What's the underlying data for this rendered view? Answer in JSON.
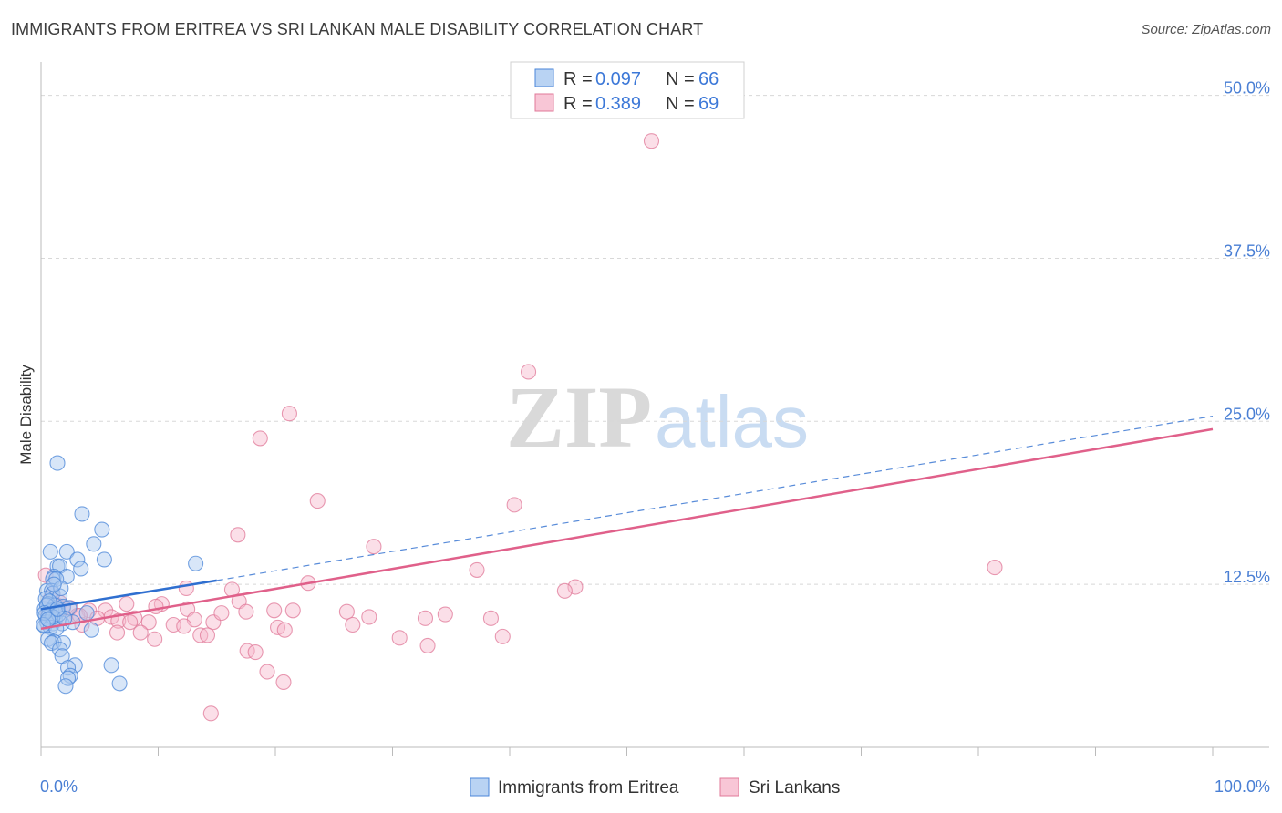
{
  "title": "IMMIGRANTS FROM ERITREA VS SRI LANKAN MALE DISABILITY CORRELATION CHART",
  "source": "Source: ZipAtlas.com",
  "watermark": {
    "zip": "ZIP",
    "atlas": "atlas"
  },
  "legend": {
    "rows": [
      {
        "r_label": "R =",
        "r_value": "0.097",
        "n_label": "N =",
        "n_value": "66"
      },
      {
        "r_label": "R =",
        "r_value": "0.389",
        "n_label": "N =",
        "n_value": "69"
      }
    ]
  },
  "bottom_legend": [
    "Immigrants from Eritrea",
    "Sri Lankans"
  ],
  "colors": {
    "eritrea_fill": "#a8c8f0",
    "eritrea_stroke": "#4a86d8",
    "eritrea_line": "#2f6fd0",
    "srilanka_fill": "#f6b8cc",
    "srilanka_stroke": "#e07898",
    "srilanka_line": "#e0608a",
    "grid": "#d8d8d8",
    "tick_text": "#4a7fd4"
  },
  "chart_data": {
    "type": "scatter",
    "title": "IMMIGRANTS FROM ERITREA VS SRI LANKAN MALE DISABILITY CORRELATION CHART",
    "xlabel": "",
    "ylabel": "Male Disability",
    "xlim": [
      0,
      100
    ],
    "ylim": [
      0,
      52
    ],
    "y_ticks": [
      12.5,
      25.0,
      37.5,
      50.0
    ],
    "y_tick_labels": [
      "12.5%",
      "25.0%",
      "37.5%",
      "50.0%"
    ],
    "x_tick_labels": [
      "0.0%",
      "100.0%"
    ],
    "series": [
      {
        "name": "Immigrants from Eritrea",
        "r": 0.097,
        "n": 66,
        "trend": {
          "x0": 0,
          "y0": 10.6,
          "x1": 15,
          "y1": 12.8,
          "dash_to_x": 100,
          "dash_to_y": 25.4
        },
        "points": [
          [
            1.4,
            21.8
          ],
          [
            3.5,
            17.9
          ],
          [
            5.2,
            16.7
          ],
          [
            4.5,
            15.6
          ],
          [
            0.8,
            15.0
          ],
          [
            2.2,
            15.0
          ],
          [
            3.1,
            14.4
          ],
          [
            5.4,
            14.4
          ],
          [
            13.2,
            14.1
          ],
          [
            1.4,
            13.9
          ],
          [
            1.6,
            13.9
          ],
          [
            3.4,
            13.7
          ],
          [
            1.1,
            13.1
          ],
          [
            2.2,
            13.1
          ],
          [
            1.0,
            12.9
          ],
          [
            1.3,
            12.9
          ],
          [
            0.5,
            12.0
          ],
          [
            0.9,
            12.0
          ],
          [
            1.0,
            11.8
          ],
          [
            1.6,
            11.6
          ],
          [
            0.4,
            11.4
          ],
          [
            0.6,
            11.0
          ],
          [
            1.2,
            10.9
          ],
          [
            1.9,
            10.8
          ],
          [
            0.3,
            10.6
          ],
          [
            0.7,
            10.4
          ],
          [
            0.9,
            10.5
          ],
          [
            1.4,
            10.4
          ],
          [
            3.9,
            10.3
          ],
          [
            0.4,
            10.1
          ],
          [
            0.6,
            10.0
          ],
          [
            0.9,
            9.9
          ],
          [
            1.2,
            9.8
          ],
          [
            0.5,
            9.6
          ],
          [
            1.0,
            9.5
          ],
          [
            1.8,
            9.5
          ],
          [
            2.7,
            9.6
          ],
          [
            0.3,
            9.3
          ],
          [
            0.8,
            9.2
          ],
          [
            1.3,
            9.1
          ],
          [
            4.3,
            9.0
          ],
          [
            0.6,
            8.3
          ],
          [
            1.1,
            8.1
          ],
          [
            0.9,
            8.0
          ],
          [
            1.9,
            8.0
          ],
          [
            1.6,
            7.5
          ],
          [
            1.8,
            7.0
          ],
          [
            2.9,
            6.3
          ],
          [
            6.0,
            6.3
          ],
          [
            2.3,
            6.1
          ],
          [
            2.5,
            5.5
          ],
          [
            2.3,
            5.3
          ],
          [
            6.7,
            4.9
          ],
          [
            2.1,
            4.7
          ],
          [
            0.5,
            10.9
          ],
          [
            1.5,
            10.2
          ],
          [
            2.4,
            10.7
          ],
          [
            0.7,
            11.2
          ],
          [
            1.0,
            10.0
          ],
          [
            2.0,
            9.9
          ],
          [
            0.3,
            10.3
          ],
          [
            1.7,
            12.2
          ],
          [
            0.2,
            9.4
          ],
          [
            1.1,
            12.5
          ],
          [
            0.6,
            9.8
          ],
          [
            1.4,
            10.6
          ]
        ]
      },
      {
        "name": "Sri Lankans",
        "r": 0.389,
        "n": 69,
        "trend": {
          "x0": 0,
          "y0": 9.1,
          "x1": 100,
          "y1": 24.4
        },
        "points": [
          [
            52.1,
            46.5
          ],
          [
            41.6,
            28.8
          ],
          [
            21.2,
            25.6
          ],
          [
            18.7,
            23.7
          ],
          [
            23.6,
            18.9
          ],
          [
            40.4,
            18.6
          ],
          [
            16.8,
            16.3
          ],
          [
            28.4,
            15.4
          ],
          [
            81.4,
            13.8
          ],
          [
            37.2,
            13.6
          ],
          [
            22.8,
            12.6
          ],
          [
            45.6,
            12.3
          ],
          [
            44.7,
            12.0
          ],
          [
            12.4,
            12.2
          ],
          [
            16.3,
            12.1
          ],
          [
            16.9,
            11.2
          ],
          [
            10.3,
            11.0
          ],
          [
            12.5,
            10.6
          ],
          [
            9.8,
            10.8
          ],
          [
            1.4,
            10.9
          ],
          [
            2.5,
            10.7
          ],
          [
            4.1,
            10.5
          ],
          [
            5.5,
            10.5
          ],
          [
            17.5,
            10.4
          ],
          [
            19.9,
            10.5
          ],
          [
            21.5,
            10.5
          ],
          [
            26.1,
            10.4
          ],
          [
            34.5,
            10.2
          ],
          [
            3.1,
            10.1
          ],
          [
            6.0,
            10.0
          ],
          [
            4.8,
            9.9
          ],
          [
            8.0,
            9.9
          ],
          [
            13.1,
            9.8
          ],
          [
            6.6,
            9.7
          ],
          [
            28.0,
            10.0
          ],
          [
            32.8,
            9.9
          ],
          [
            38.4,
            9.9
          ],
          [
            7.6,
            9.6
          ],
          [
            9.2,
            9.6
          ],
          [
            14.7,
            9.6
          ],
          [
            26.6,
            9.4
          ],
          [
            11.3,
            9.4
          ],
          [
            3.5,
            9.4
          ],
          [
            12.2,
            9.3
          ],
          [
            20.2,
            9.2
          ],
          [
            20.8,
            9.0
          ],
          [
            6.5,
            8.8
          ],
          [
            8.5,
            8.8
          ],
          [
            13.6,
            8.6
          ],
          [
            14.2,
            8.6
          ],
          [
            30.6,
            8.4
          ],
          [
            39.4,
            8.5
          ],
          [
            9.7,
            8.3
          ],
          [
            33.0,
            7.8
          ],
          [
            17.6,
            7.4
          ],
          [
            18.3,
            7.3
          ],
          [
            19.3,
            5.8
          ],
          [
            20.7,
            5.0
          ],
          [
            14.5,
            2.6
          ],
          [
            1.0,
            11.8
          ],
          [
            0.6,
            10.2
          ],
          [
            2.0,
            9.9
          ],
          [
            1.6,
            11.1
          ],
          [
            3.3,
            10.1
          ],
          [
            0.4,
            13.2
          ],
          [
            1.9,
            10.7
          ],
          [
            0.8,
            11.4
          ],
          [
            7.3,
            11.0
          ],
          [
            15.4,
            10.3
          ]
        ]
      }
    ]
  }
}
